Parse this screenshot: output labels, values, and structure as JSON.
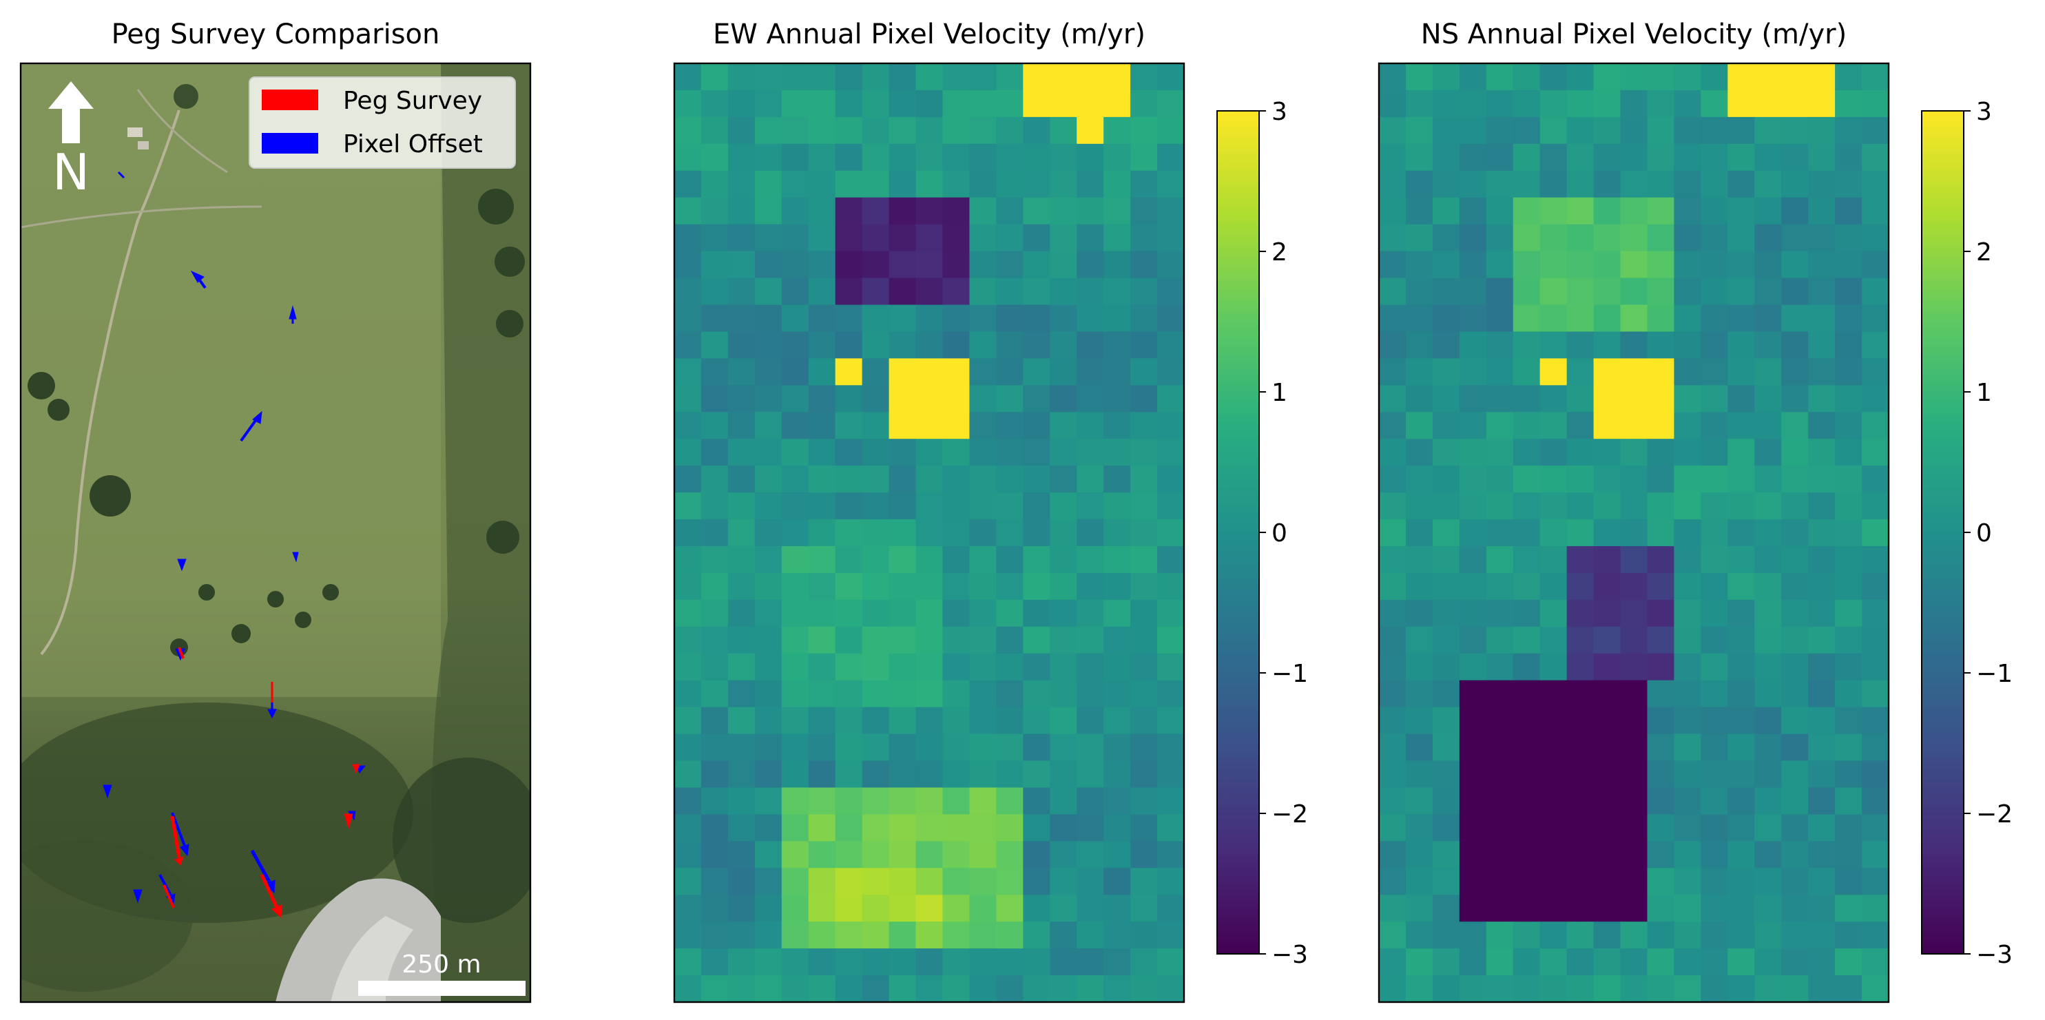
{
  "chart_data": [
    {
      "type": "image",
      "title": "Peg Survey Comparison",
      "legend": {
        "placement": "upper right",
        "entries": [
          {
            "label": "Peg Survey",
            "color": "#ff0000"
          },
          {
            "label": "Pixel Offset",
            "color": "#0000ff"
          }
        ]
      },
      "north_arrow": {
        "label": "N",
        "icon": "north-arrow-icon"
      },
      "scale_bar": {
        "label": "250 m"
      },
      "background": "aerial-photo"
    },
    {
      "type": "heatmap",
      "title": "EW Annual Pixel Velocity (m/yr)",
      "colormap": "viridis",
      "colorbar": {
        "ticks": [
          3,
          2,
          1,
          0,
          -1,
          -2,
          -3
        ],
        "tick_labels": [
          "3",
          "2",
          "1",
          "0",
          "−1",
          "−2",
          "−3"
        ],
        "vmin": -3,
        "vmax": 3
      },
      "cols": 19,
      "rows": 35,
      "features": [
        {
          "row": [
            0,
            1
          ],
          "col": [
            13,
            16
          ],
          "value": 3
        },
        {
          "row": [
            2,
            2
          ],
          "col": [
            15,
            15
          ],
          "value": 3
        },
        {
          "row": [
            5,
            8
          ],
          "col": [
            6,
            10
          ],
          "value": -2.4
        },
        {
          "row": [
            11,
            13
          ],
          "col": [
            8,
            10
          ],
          "value": 3
        },
        {
          "row": [
            11,
            11
          ],
          "col": [
            6,
            6
          ],
          "value": 3
        },
        {
          "row": [
            18,
            23
          ],
          "col": [
            4,
            9
          ],
          "value": 0.7
        },
        {
          "row": [
            27,
            32
          ],
          "col": [
            4,
            12
          ],
          "value": 1.6
        },
        {
          "row": [
            30,
            31
          ],
          "col": [
            5,
            9
          ],
          "value": 2.2
        }
      ]
    },
    {
      "type": "heatmap",
      "title": "NS Annual Pixel Velocity (m/yr)",
      "colormap": "viridis",
      "colorbar": {
        "ticks": [
          3,
          2,
          1,
          0,
          -1,
          -2,
          -3
        ],
        "tick_labels": [
          "3",
          "2",
          "1",
          "0",
          "−1",
          "−2",
          "−3"
        ],
        "vmin": -3,
        "vmax": 3
      },
      "cols": 19,
      "rows": 35,
      "features": [
        {
          "row": [
            0,
            1
          ],
          "col": [
            13,
            16
          ],
          "value": 3
        },
        {
          "row": [
            5,
            9
          ],
          "col": [
            5,
            10
          ],
          "value": 1.3
        },
        {
          "row": [
            11,
            13
          ],
          "col": [
            8,
            10
          ],
          "value": 3
        },
        {
          "row": [
            11,
            11
          ],
          "col": [
            6,
            6
          ],
          "value": 3
        },
        {
          "row": [
            18,
            22
          ],
          "col": [
            7,
            10
          ],
          "value": -2
        },
        {
          "row": [
            23,
            31
          ],
          "col": [
            3,
            9
          ],
          "value": -3
        }
      ]
    }
  ]
}
